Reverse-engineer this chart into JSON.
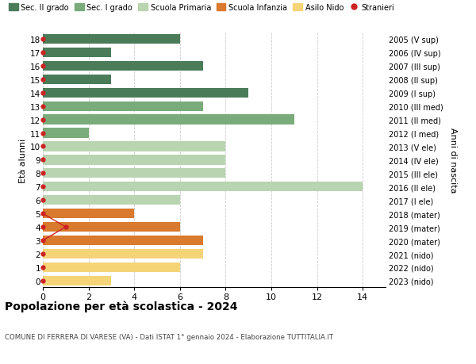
{
  "ages": [
    18,
    17,
    16,
    15,
    14,
    13,
    12,
    11,
    10,
    9,
    8,
    7,
    6,
    5,
    4,
    3,
    2,
    1,
    0
  ],
  "right_labels": [
    "2005 (V sup)",
    "2006 (IV sup)",
    "2007 (III sup)",
    "2008 (II sup)",
    "2009 (I sup)",
    "2010 (III med)",
    "2011 (II med)",
    "2012 (I med)",
    "2013 (V ele)",
    "2014 (IV ele)",
    "2015 (III ele)",
    "2016 (II ele)",
    "2017 (I ele)",
    "2018 (mater)",
    "2019 (mater)",
    "2020 (mater)",
    "2021 (nido)",
    "2022 (nido)",
    "2023 (nido)"
  ],
  "bar_values": [
    6,
    3,
    7,
    3,
    9,
    7,
    11,
    2,
    8,
    8,
    8,
    14,
    6,
    4,
    6,
    7,
    7,
    6,
    3
  ],
  "bar_colors": [
    "#4a7c59",
    "#4a7c59",
    "#4a7c59",
    "#4a7c59",
    "#4a7c59",
    "#7aab7a",
    "#7aab7a",
    "#7aab7a",
    "#b8d4b0",
    "#b8d4b0",
    "#b8d4b0",
    "#b8d4b0",
    "#b8d4b0",
    "#d97a2e",
    "#d97a2e",
    "#d97a2e",
    "#f5d478",
    "#f5d478",
    "#f5d478"
  ],
  "title": "Popolazione per età scolastica - 2024",
  "subtitle": "COMUNE DI FERRERA DI VARESE (VA) - Dati ISTAT 1° gennaio 2024 - Elaborazione TUTTITALIA.IT",
  "ylabel_left": "Età alunni",
  "ylabel_right": "Anni di nascita",
  "legend_items": [
    {
      "label": "Sec. II grado",
      "color": "#4a7c59",
      "type": "patch"
    },
    {
      "label": "Sec. I grado",
      "color": "#7aab7a",
      "type": "patch"
    },
    {
      "label": "Scuola Primaria",
      "color": "#b8d4b0",
      "type": "patch"
    },
    {
      "label": "Scuola Infanzia",
      "color": "#d97a2e",
      "type": "patch"
    },
    {
      "label": "Asilo Nido",
      "color": "#f5d478",
      "type": "patch"
    },
    {
      "label": "Stranieri",
      "color": "#cc2222",
      "type": "circle"
    }
  ],
  "xlim": [
    0,
    15
  ],
  "xticks": [
    0,
    2,
    4,
    6,
    8,
    10,
    12,
    14
  ],
  "bar_height": 0.72,
  "bg_color": "#ffffff",
  "grid_color": "#cccccc",
  "stranieri_line_ages": [
    5,
    4,
    3
  ],
  "stranieri_line_x": [
    0,
    1,
    0
  ]
}
